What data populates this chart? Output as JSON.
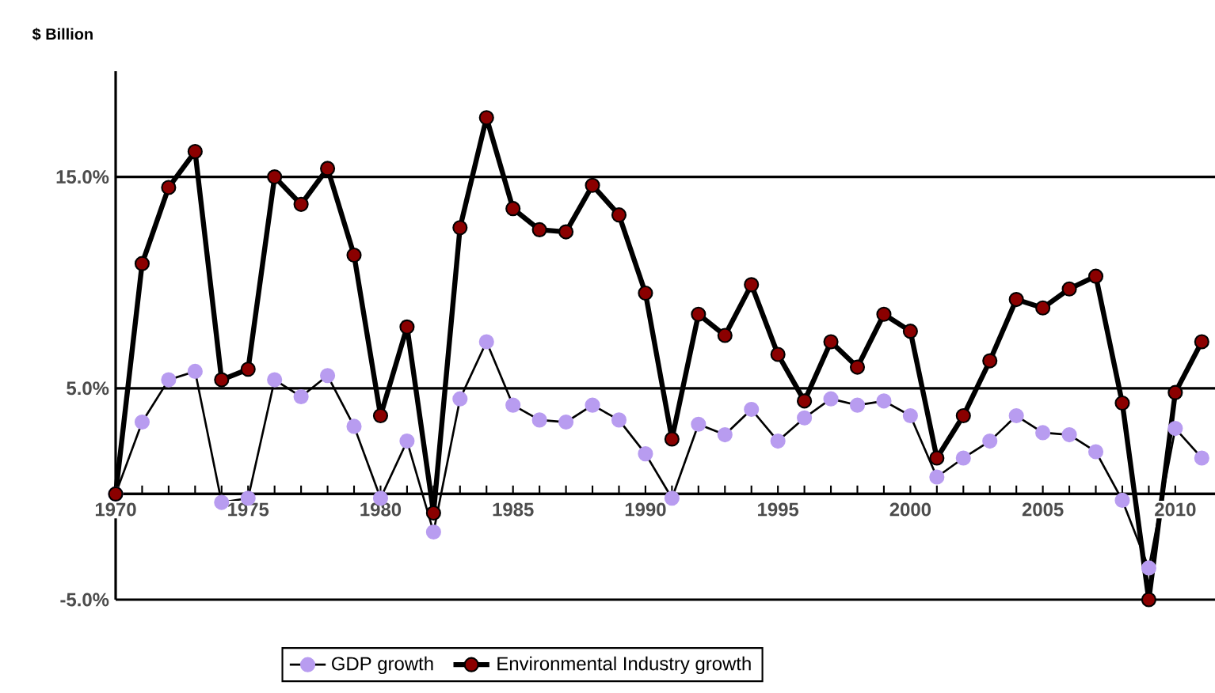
{
  "chart_data": {
    "type": "line",
    "ylabel": "$ Billion",
    "x": [
      1970,
      1971,
      1972,
      1973,
      1974,
      1975,
      1976,
      1977,
      1978,
      1979,
      1980,
      1981,
      1982,
      1983,
      1984,
      1985,
      1986,
      1987,
      1988,
      1989,
      1990,
      1991,
      1992,
      1993,
      1994,
      1995,
      1996,
      1997,
      1998,
      1999,
      2000,
      2001,
      2002,
      2003,
      2004,
      2005,
      2006,
      2007,
      2008,
      2009,
      2010,
      2011
    ],
    "series": [
      {
        "name": "GDP growth",
        "color": "#b89cf0",
        "values": [
          0,
          3.4,
          5.4,
          5.8,
          -0.4,
          -0.2,
          5.4,
          4.6,
          5.6,
          3.2,
          -0.2,
          2.5,
          -1.8,
          4.5,
          7.2,
          4.2,
          3.5,
          3.4,
          4.2,
          3.5,
          1.9,
          -0.2,
          3.3,
          2.8,
          4.0,
          2.5,
          3.6,
          4.5,
          4.2,
          4.4,
          3.7,
          0.8,
          1.7,
          2.5,
          3.7,
          2.9,
          2.8,
          2.0,
          -0.3,
          -3.5,
          3.1,
          1.7
        ]
      },
      {
        "name": "Environmental Industry growth",
        "color": "#8b0000",
        "values": [
          0,
          10.9,
          14.5,
          16.2,
          5.4,
          5.9,
          15.0,
          13.7,
          15.4,
          11.3,
          3.7,
          7.9,
          -0.9,
          12.6,
          17.8,
          13.5,
          12.5,
          12.4,
          14.6,
          13.2,
          9.5,
          2.6,
          8.5,
          7.5,
          9.9,
          6.6,
          4.4,
          7.2,
          6.0,
          8.5,
          7.7,
          1.7,
          3.7,
          6.3,
          9.2,
          8.8,
          9.7,
          10.3,
          4.3,
          -5.0,
          4.8,
          7.2
        ]
      }
    ],
    "xlim": [
      1970,
      2011.5
    ],
    "xticks": [
      1970,
      1975,
      1980,
      1985,
      1990,
      1995,
      2000,
      2005,
      2010
    ],
    "ylim": [
      -5,
      20
    ],
    "yticks": [
      {
        "value": -5,
        "label": "-5.0%"
      },
      {
        "value": 0,
        "label": null
      },
      {
        "value": 5,
        "label": "5.0%"
      },
      {
        "value": 15,
        "label": "15.0%"
      }
    ],
    "grid": "y",
    "legend": "bottom",
    "marker": "circle",
    "line_style": "solid"
  }
}
